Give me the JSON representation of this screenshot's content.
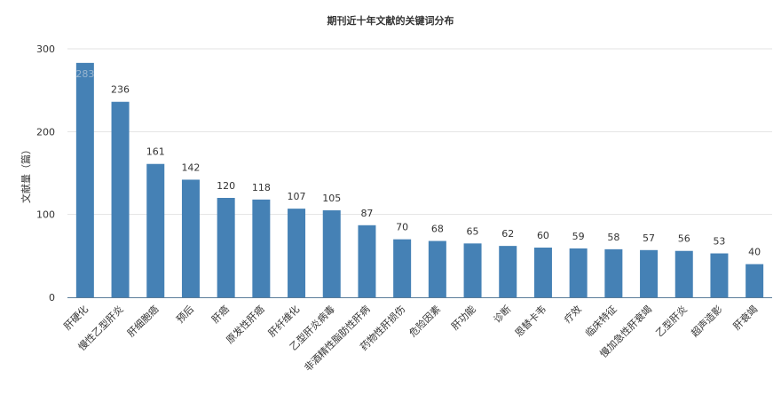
{
  "chart_data": {
    "type": "bar",
    "title": "期刊近十年文献的关键词分布",
    "xlabel": "",
    "ylabel": "文献量（篇）",
    "ylim": [
      0,
      300
    ],
    "yticks": [
      0,
      100,
      200,
      300
    ],
    "grid": true,
    "legend": "none",
    "bar_color": "#4581b5",
    "categories": [
      "肝硬化",
      "慢性乙型肝炎",
      "肝细胞癌",
      "预后",
      "肝癌",
      "原发性肝癌",
      "肝纤维化",
      "乙型肝炎病毒",
      "非酒精性脂肪性肝病",
      "药物性肝损伤",
      "危险因素",
      "肝功能",
      "诊断",
      "恩替卡韦",
      "疗效",
      "临床特征",
      "慢加急性肝衰竭",
      "乙型肝炎",
      "超声造影",
      "肝衰竭"
    ],
    "values": [
      283,
      236,
      161,
      142,
      120,
      118,
      107,
      105,
      87,
      70,
      68,
      65,
      62,
      60,
      59,
      58,
      57,
      56,
      53,
      40
    ]
  }
}
